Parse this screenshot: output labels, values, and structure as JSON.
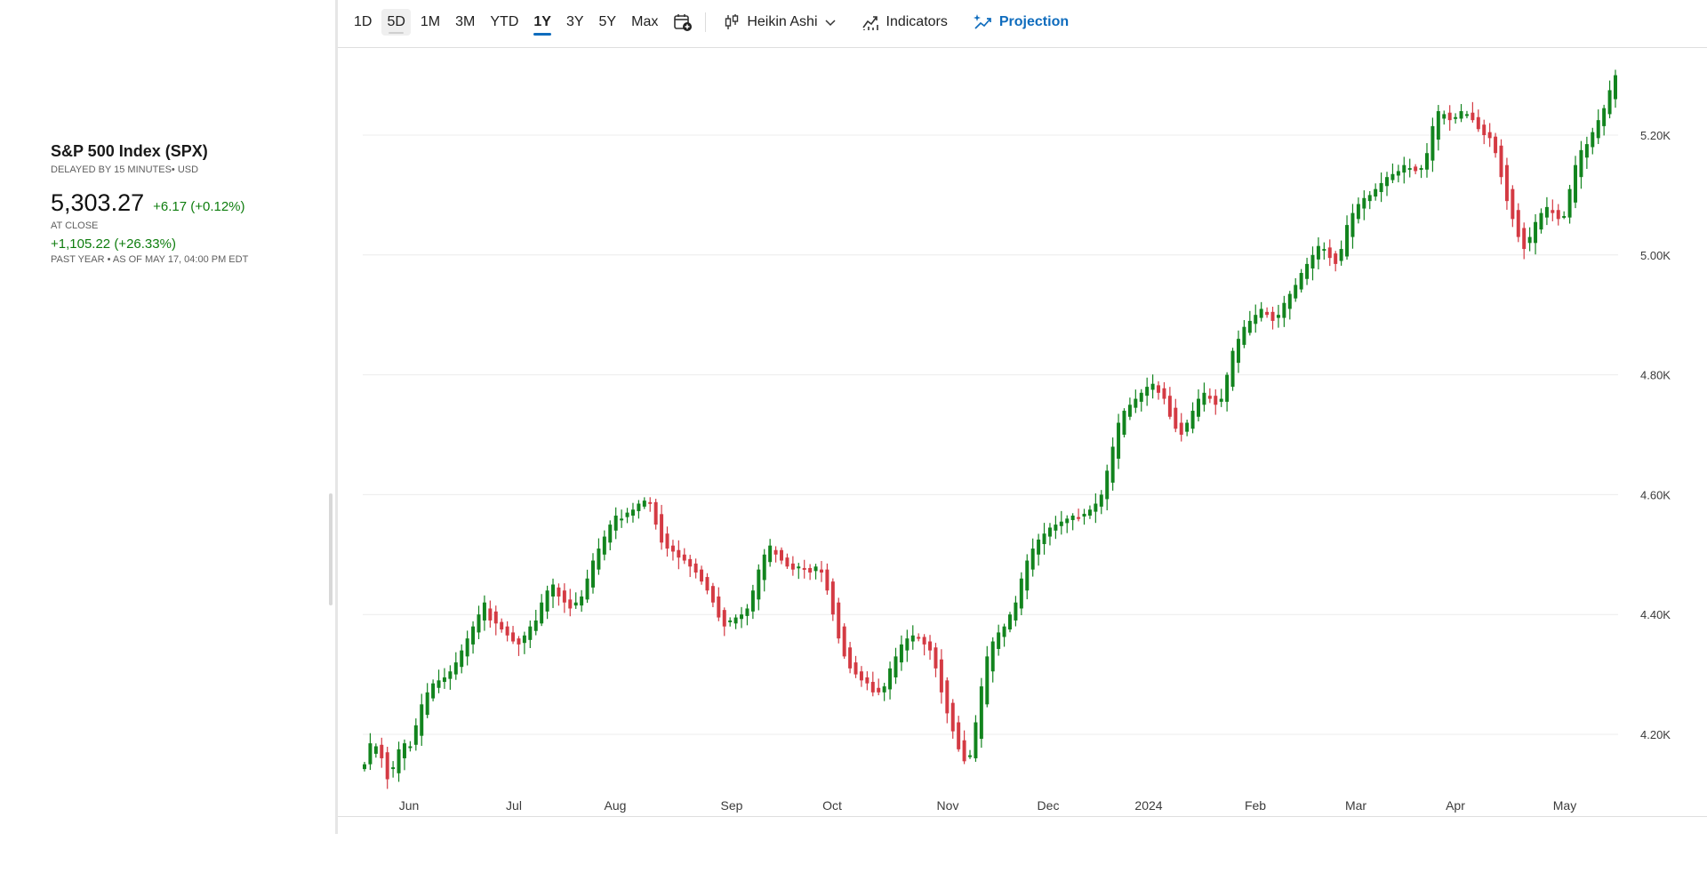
{
  "info": {
    "title": "S&P 500 Index (SPX)",
    "delayed": "DELAYED BY 15 MINUTES• USD",
    "price": "5,303.27",
    "change": "+6.17 (+0.12%)",
    "at_close": "AT CLOSE",
    "year_change": "+1,105.22 (+26.33%)",
    "as_of": "PAST YEAR • AS OF MAY 17, 04:00 PM EDT"
  },
  "toolbar": {
    "timeframes": [
      "1D",
      "5D",
      "1M",
      "3M",
      "YTD",
      "1Y",
      "3Y",
      "5Y",
      "Max"
    ],
    "active_timeframe": "1Y",
    "hover_timeframe": "5D",
    "chart_type_label": "Heikin Ashi",
    "indicators_label": "Indicators",
    "projection_label": "Projection",
    "icons": {
      "calendar": "calendar-plus-icon",
      "chart_type": "candlestick-icon",
      "dropdown": "chevron-down-icon",
      "indicators": "line-chart-icon",
      "projection": "sparkle-trend-icon"
    }
  },
  "colors": {
    "up": "#12841e",
    "down": "#d43a43",
    "accent": "#0f6cbd",
    "positive_text": "#0e7d0e",
    "grid": "#ececec"
  },
  "chart_data": {
    "type": "candlestick",
    "style": "Heikin Ashi",
    "period": "1Y",
    "x_labels": [
      "Jun",
      "Jul",
      "Aug",
      "Sep",
      "Oct",
      "Nov",
      "Dec",
      "2024",
      "Feb",
      "Mar",
      "Apr",
      "May"
    ],
    "y_ticks": [
      4200,
      4400,
      4600,
      4800,
      5000,
      5200
    ],
    "y_tick_labels": [
      "4.20K",
      "4.40K",
      "4.60K",
      "4.80K",
      "5.00K",
      "5.20K"
    ],
    "ylim": [
      4100,
      5340
    ],
    "grid": "horizontal",
    "closes": [
      4150,
      4185,
      4180,
      4160,
      4125,
      4145,
      4175,
      4185,
      4180,
      4215,
      4250,
      4270,
      4285,
      4290,
      4295,
      4305,
      4320,
      4340,
      4360,
      4380,
      4400,
      4420,
      4390,
      4385,
      4375,
      4365,
      4355,
      4350,
      4365,
      4380,
      4390,
      4420,
      4440,
      4450,
      4430,
      4420,
      4410,
      4420,
      4430,
      4460,
      4490,
      4510,
      4530,
      4550,
      4565,
      4560,
      4570,
      4575,
      4585,
      4590,
      4585,
      4550,
      4520,
      4510,
      4505,
      4495,
      4490,
      4480,
      4470,
      4455,
      4440,
      4420,
      4395,
      4380,
      4390,
      4395,
      4400,
      4410,
      4440,
      4475,
      4500,
      4515,
      4500,
      4490,
      4480,
      4475,
      4480,
      4475,
      4470,
      4480,
      4470,
      4440,
      4400,
      4360,
      4330,
      4310,
      4300,
      4290,
      4285,
      4270,
      4270,
      4280,
      4310,
      4330,
      4350,
      4360,
      4365,
      4360,
      4350,
      4340,
      4310,
      4270,
      4235,
      4205,
      4175,
      4155,
      4165,
      4220,
      4280,
      4330,
      4355,
      4370,
      4380,
      4400,
      4420,
      4460,
      4490,
      4510,
      4525,
      4535,
      4545,
      4550,
      4555,
      4560,
      4565,
      4562,
      4568,
      4575,
      4585,
      4600,
      4640,
      4680,
      4720,
      4740,
      4750,
      4760,
      4770,
      4780,
      4785,
      4770,
      4760,
      4730,
      4710,
      4700,
      4720,
      4740,
      4760,
      4770,
      4760,
      4750,
      4760,
      4800,
      4840,
      4860,
      4880,
      4890,
      4900,
      4910,
      4900,
      4890,
      4900,
      4920,
      4935,
      4950,
      4970,
      4985,
      5000,
      5015,
      5010,
      4995,
      4985,
      5010,
      5050,
      5070,
      5085,
      5095,
      5100,
      5110,
      5120,
      5130,
      5135,
      5140,
      5150,
      5145,
      5140,
      5145,
      5170,
      5215,
      5240,
      5235,
      5225,
      5230,
      5240,
      5235,
      5225,
      5210,
      5200,
      5195,
      5170,
      5130,
      5090,
      5060,
      5030,
      5010,
      5030,
      5055,
      5070,
      5080,
      5070,
      5060,
      5065,
      5110,
      5150,
      5175,
      5185,
      5205,
      5225,
      5245,
      5275,
      5300
    ]
  }
}
